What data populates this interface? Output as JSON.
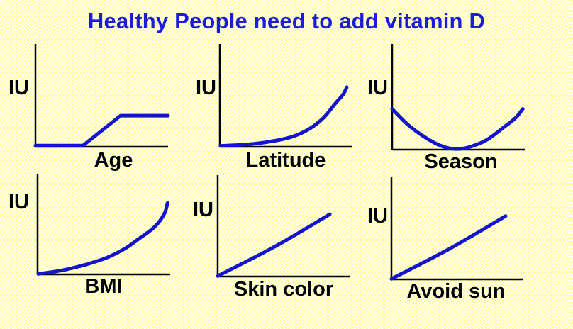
{
  "slide": {
    "title": "Healthy People need to add vitamin D"
  },
  "colors": {
    "background_base": "#ffffff",
    "background_dither": "#ffff99",
    "title_text": "#1c1cd9",
    "curve": "#1414cc",
    "axis": "#000000",
    "label_text": "#000000"
  },
  "chart_data": [
    {
      "type": "line",
      "title": "Vitamin D need vs Age",
      "xlabel": "Age",
      "ylabel": "IU",
      "axis_ticks": "none (qualitative sketch)",
      "grid": false,
      "legend": false,
      "trend": "flat at zero for young ages, linear rise in mid range, plateau at older ages",
      "straight_segments": true,
      "points_norm": [
        [
          0,
          0.012
        ],
        [
          0.358,
          0.012
        ],
        [
          0.642,
          0.303
        ],
        [
          1.0,
          0.303
        ]
      ]
    },
    {
      "type": "line",
      "title": "Vitamin D need vs Latitude",
      "xlabel": "Latitude",
      "ylabel": "IU",
      "axis_ticks": "none (qualitative sketch)",
      "grid": false,
      "legend": false,
      "trend": "near zero at low latitude, accelerating exponential rise toward high latitude",
      "straight_segments": false,
      "points_norm": [
        [
          0.005,
          0.01
        ],
        [
          0.2,
          0.022
        ],
        [
          0.4,
          0.055
        ],
        [
          0.55,
          0.1
        ],
        [
          0.67,
          0.17
        ],
        [
          0.78,
          0.28
        ],
        [
          0.87,
          0.42
        ],
        [
          0.93,
          0.51
        ],
        [
          0.957,
          0.58
        ]
      ]
    },
    {
      "type": "line",
      "title": "Vitamin D need vs Season",
      "xlabel": "Season",
      "ylabel": "IU",
      "axis_ticks": "none (qualitative sketch)",
      "grid": false,
      "legend": false,
      "trend": "U-shape: high in winter, dips to minimum at mid-year (summer), rises again",
      "straight_segments": false,
      "points_norm": [
        [
          0.0,
          0.385
        ],
        [
          0.12,
          0.235
        ],
        [
          0.25,
          0.115
        ],
        [
          0.36,
          0.04
        ],
        [
          0.465,
          0.007
        ],
        [
          0.57,
          0.02
        ],
        [
          0.71,
          0.09
        ],
        [
          0.84,
          0.21
        ],
        [
          0.93,
          0.3
        ],
        [
          0.985,
          0.385
        ]
      ]
    },
    {
      "type": "line",
      "title": "Vitamin D need vs BMI",
      "xlabel": "BMI",
      "ylabel": "IU",
      "axis_ticks": "none (qualitative sketch)",
      "grid": false,
      "legend": false,
      "trend": "starts at zero, convex accelerating rise, nearly vertical at high BMI",
      "straight_segments": false,
      "points_norm": [
        [
          0.005,
          0.005
        ],
        [
          0.22,
          0.05
        ],
        [
          0.49,
          0.15
        ],
        [
          0.65,
          0.25
        ],
        [
          0.76,
          0.35
        ],
        [
          0.88,
          0.47
        ],
        [
          0.955,
          0.6
        ],
        [
          0.98,
          0.71
        ]
      ]
    },
    {
      "type": "line",
      "title": "Vitamin D need vs Skin color",
      "xlabel": "Skin color",
      "ylabel": "IU",
      "axis_ticks": "none (qualitative sketch)",
      "grid": false,
      "legend": false,
      "trend": "steady almost-linear increase with darker skin color",
      "straight_segments": false,
      "points_norm": [
        [
          0.0,
          0.005
        ],
        [
          0.44,
          0.3
        ],
        [
          0.85,
          0.615
        ]
      ]
    },
    {
      "type": "line",
      "title": "Vitamin D need vs Avoid sun",
      "xlabel": "Avoid sun",
      "ylabel": "IU",
      "axis_ticks": "none (qualitative sketch)",
      "grid": false,
      "legend": false,
      "trend": "steady almost-linear increase with more sun avoidance",
      "straight_segments": false,
      "points_norm": [
        [
          0.0,
          0.005
        ],
        [
          0.45,
          0.305
        ],
        [
          0.87,
          0.62
        ]
      ]
    }
  ]
}
